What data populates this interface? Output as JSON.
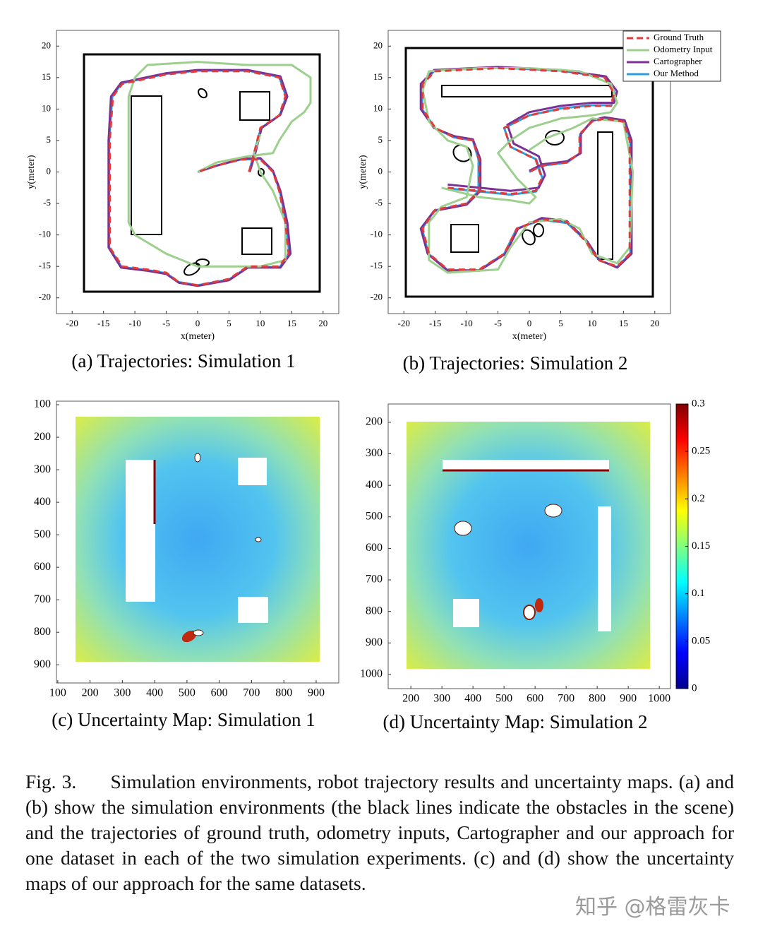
{
  "chart_data": [
    {
      "type": "line",
      "caption": "(a) Trajectories: Simulation 1",
      "xlabel": "x(meter)",
      "ylabel": "y(meter)",
      "xlim": [
        -22.5,
        22.5
      ],
      "ylim": [
        -22.5,
        22.5
      ],
      "xticks": [
        -20,
        -15,
        -10,
        -5,
        0,
        5,
        10,
        15,
        20
      ],
      "yticks": [
        -20,
        -15,
        -10,
        -5,
        0,
        5,
        10,
        15,
        20
      ],
      "series": [
        {
          "color": "#e03c3c",
          "style": "dashed",
          "x": [
            8.2,
            9,
            10,
            13,
            14,
            13,
            8,
            0,
            -5,
            -12,
            -13.5,
            -14,
            -14,
            -14,
            -12,
            -8,
            -5,
            -3,
            0,
            5,
            8,
            13,
            14.5,
            14,
            13,
            12,
            10,
            7,
            3,
            0
          ],
          "values": [
            0,
            3,
            7,
            9,
            12,
            15,
            16,
            16,
            15.5,
            14,
            12,
            5,
            -5,
            -12,
            -15,
            -15.5,
            -16,
            -17.5,
            -18,
            -17,
            -15,
            -15,
            -13,
            -8,
            -3,
            0,
            2,
            2,
            1,
            0
          ]
        },
        {
          "color": "#9dd08f",
          "style": "solid",
          "x": [
            0,
            3,
            8,
            12,
            13,
            15,
            17,
            18,
            18,
            15,
            8,
            0,
            -8,
            -10,
            -11,
            -11,
            -11,
            -10,
            -5,
            0,
            5,
            10,
            14,
            14,
            12,
            10,
            9,
            10
          ],
          "values": [
            0,
            1.5,
            2.5,
            3,
            5,
            8,
            9.5,
            11,
            15,
            17,
            17,
            17.5,
            17,
            15,
            12,
            0,
            -8,
            -10,
            -13,
            -15,
            -15,
            -15,
            -14,
            -8,
            -3,
            0,
            3,
            6
          ]
        },
        {
          "color": "#7b3294",
          "style": "solid",
          "x": [
            8.3,
            9.2,
            10.2,
            13.2,
            14.3,
            13.2,
            8,
            0,
            -5,
            -12.2,
            -13.8,
            -14.2,
            -14.2,
            -14.2,
            -12.2,
            -8,
            -5,
            -3,
            0,
            5,
            8,
            13.2,
            14.8,
            14.3,
            13.2,
            12,
            10,
            7,
            3,
            0
          ],
          "values": [
            0,
            3,
            7,
            9.1,
            12,
            15.2,
            16.2,
            16.2,
            15.7,
            14.2,
            12,
            5,
            -5,
            -12,
            -15.2,
            -15.7,
            -16.2,
            -17.6,
            -18.1,
            -17.2,
            -15.2,
            -15.2,
            -13,
            -8,
            -3,
            0.2,
            2.2,
            2.1,
            1,
            0
          ]
        },
        {
          "color": "#2a9fdf",
          "style": "solid",
          "x": [
            8.2,
            9,
            10.1,
            13.1,
            14.1,
            13,
            8,
            0,
            -5,
            -12.1,
            -13.6,
            -14.1,
            -14.1,
            -14.1,
            -12.1,
            -8,
            -5,
            -3,
            0,
            5,
            8,
            13.1,
            14.6,
            14.1,
            13.1,
            12,
            10,
            7,
            3,
            0
          ],
          "values": [
            0,
            3,
            7,
            9,
            12,
            15.1,
            16.1,
            16.1,
            15.6,
            14.1,
            12,
            5,
            -5,
            -12,
            -15.1,
            -15.6,
            -16.1,
            -17.5,
            -18,
            -17.1,
            -15.1,
            -15.1,
            -13,
            -8,
            -3,
            0.1,
            2.1,
            2,
            1,
            0
          ]
        }
      ]
    },
    {
      "type": "line",
      "caption": "(b) Trajectories: Simulation 2",
      "xlabel": "x(meter)",
      "ylabel": "y(meter)",
      "xlim": [
        -22.5,
        22.5
      ],
      "ylim": [
        -22.5,
        22.5
      ],
      "xticks": [
        -20,
        -15,
        -10,
        -5,
        0,
        5,
        10,
        15,
        20
      ],
      "yticks": [
        -20,
        -15,
        -10,
        -5,
        0,
        5,
        10,
        15,
        20
      ],
      "legend": "upper right",
      "series": [
        {
          "name": "Ground Truth",
          "color": "#e03c3c",
          "style": "dashed",
          "x": [
            -13,
            -8,
            -3,
            1,
            2,
            1,
            -3,
            -4,
            0,
            5,
            10,
            13,
            13.5,
            12,
            5,
            -5,
            -15,
            -17,
            -17,
            -15,
            -12,
            -9,
            -8,
            -8,
            -10,
            -15,
            -17,
            -16,
            -13,
            -8,
            -4,
            -2,
            2,
            6,
            9,
            11,
            14,
            16,
            16,
            16,
            15,
            12,
            10,
            8,
            8,
            6,
            2,
            0
          ],
          "values": [
            -2.5,
            -3,
            -3.5,
            -3,
            -1,
            2,
            4,
            7,
            9,
            10,
            10.5,
            10.5,
            12.5,
            15,
            16,
            16.5,
            16,
            14,
            10,
            7,
            5.5,
            5,
            2,
            -3,
            -5,
            -6,
            -9,
            -13,
            -15.5,
            -15.5,
            -13,
            -9,
            -7.5,
            -8,
            -11,
            -14,
            -15,
            -13,
            -5,
            5,
            8,
            8.5,
            8,
            6,
            3,
            1.5,
            1,
            0
          ]
        },
        {
          "name": "Odometry Input",
          "color": "#9dd08f",
          "style": "solid",
          "x": [
            -14,
            -8,
            -3,
            0,
            1,
            -2,
            -5,
            -3,
            0,
            5,
            10,
            13,
            14,
            13,
            8,
            0,
            -8,
            -16,
            -17,
            -16,
            -13,
            -10,
            -9,
            -10,
            -14,
            -16,
            -16,
            -13,
            -5,
            -3,
            0,
            5,
            8,
            10,
            14,
            16,
            16.5,
            15,
            10,
            7,
            3,
            0
          ],
          "values": [
            -2.5,
            -4,
            -4.5,
            -5,
            -4,
            -1,
            3,
            5,
            7,
            8.5,
            9,
            9.5,
            11,
            14,
            16,
            16.5,
            16.5,
            16,
            13,
            8,
            5,
            4,
            1,
            -4,
            -5.5,
            -8,
            -14,
            -16,
            -15.5,
            -12,
            -8,
            -7.5,
            -9,
            -13,
            -14.5,
            -12,
            0,
            8,
            8.5,
            7,
            5.5,
            3.5
          ]
        },
        {
          "name": "Cartographer",
          "color": "#7b3294",
          "style": "solid",
          "x": [
            -13,
            -8,
            -3,
            1.5,
            2.5,
            1.5,
            -2.5,
            -3.5,
            0,
            5,
            10,
            13.5,
            14,
            12.2,
            5,
            -5,
            -15.2,
            -17.3,
            -17.3,
            -15.2,
            -12,
            -9,
            -7.8,
            -7.8,
            -10,
            -15.2,
            -17.3,
            -16.2,
            -13,
            -8,
            -3.8,
            -1.8,
            2,
            6,
            9.2,
            11.2,
            14,
            16.3,
            16.3,
            16.3,
            15.2,
            12,
            10,
            8.2,
            8.2,
            6,
            2,
            0
          ],
          "values": [
            -2,
            -2.5,
            -3,
            -2.5,
            -0.5,
            2.5,
            4.5,
            7.5,
            9.5,
            10.5,
            11,
            11,
            12.8,
            15.2,
            16.2,
            16.7,
            16.2,
            14,
            10,
            7,
            5.7,
            5.2,
            2,
            -3,
            -5.2,
            -6.2,
            -9,
            -13,
            -15.7,
            -15.7,
            -13,
            -9,
            -7.3,
            -7.8,
            -11,
            -14,
            -15.2,
            -13,
            -5,
            5,
            8.2,
            8.7,
            8.2,
            6,
            3,
            1.7,
            1.2,
            0.2
          ]
        },
        {
          "name": "Our Method",
          "color": "#2a9fdf",
          "style": "solid",
          "x": [
            -13,
            -8,
            -3,
            1.1,
            2.1,
            1.1,
            -3,
            -4,
            0,
            5,
            10,
            13.1,
            13.6,
            12.1,
            5,
            -5,
            -15.1,
            -17.1,
            -17.1,
            -15.1,
            -12,
            -9,
            -8.1,
            -8.1,
            -10,
            -15.1,
            -17.1,
            -16.1,
            -13,
            -8,
            -4,
            -2,
            2,
            6,
            9.1,
            11.1,
            14,
            16.1,
            16.1,
            16.1,
            15.1,
            12,
            10,
            8.1,
            8.1,
            6,
            2,
            0
          ],
          "values": [
            -2.6,
            -3.1,
            -3.6,
            -3.1,
            -1.1,
            2,
            4,
            7,
            9,
            10.1,
            10.6,
            10.6,
            12.6,
            15.1,
            16.1,
            16.6,
            16.1,
            14,
            10,
            7,
            5.5,
            5,
            2,
            -3,
            -5.1,
            -6.1,
            -9,
            -13,
            -15.6,
            -15.6,
            -13,
            -9,
            -7.6,
            -8.1,
            -11,
            -14,
            -15.1,
            -13,
            -5,
            5,
            8.1,
            8.6,
            8.1,
            6,
            3,
            1.5,
            1,
            0
          ]
        }
      ]
    },
    {
      "type": "heatmap",
      "caption": "(c) Uncertainty Map: Simulation 1",
      "xlim": [
        96,
        970
      ],
      "ylim": [
        956,
        89
      ],
      "xticks": [
        100,
        200,
        300,
        400,
        500,
        600,
        700,
        800,
        900
      ],
      "yticks": [
        100,
        200,
        300,
        400,
        500,
        600,
        700,
        800,
        900
      ]
    },
    {
      "type": "heatmap",
      "caption": "(d) Uncertainty Map: Simulation 2",
      "xlim": [
        127,
        1036
      ],
      "ylim": [
        1045,
        142
      ],
      "xticks": [
        200,
        300,
        400,
        500,
        600,
        700,
        800,
        900,
        1000
      ],
      "yticks": [
        200,
        300,
        400,
        500,
        600,
        700,
        800,
        900,
        1000
      ],
      "colorbar": {
        "lim": [
          0,
          0.3
        ],
        "ticks": [
          0,
          0.05,
          0.1,
          0.15,
          0.2,
          0.25,
          0.3
        ]
      }
    }
  ],
  "caption": "Fig. 3.      Simulation environments, robot trajectory results and uncertainty maps. (a) and (b) show the simulation environments (the black lines indicate the obstacles in the scene) and the trajectories of ground truth, odometry inputs, Cartographer and our approach for one dataset in each of the two simulation experiments. (c) and (d) show the uncertainty maps of our approach for the same datasets.",
  "watermark": "知乎 @格雷灰卡"
}
